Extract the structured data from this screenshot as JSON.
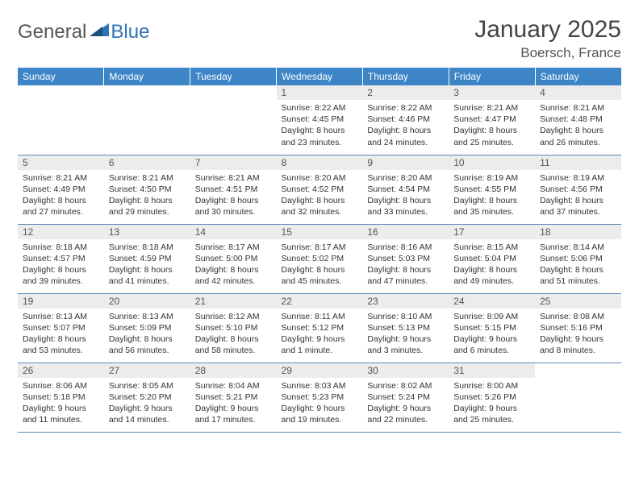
{
  "logo": {
    "text_general": "General",
    "text_blue": "Blue"
  },
  "title": "January 2025",
  "location": "Boersch, France",
  "colors": {
    "header_bg": "#3d85c6",
    "header_text": "#ffffff",
    "daynum_bg": "#ececec",
    "daynum_text": "#555555",
    "body_text": "#333333",
    "row_border": "#5c8ab8",
    "logo_blue": "#2e74b5",
    "logo_gray": "#555555"
  },
  "typography": {
    "title_fontsize": 30,
    "location_fontsize": 17,
    "header_fontsize": 12,
    "daynum_fontsize": 12,
    "cell_fontsize": 10.5
  },
  "weekdays": [
    "Sunday",
    "Monday",
    "Tuesday",
    "Wednesday",
    "Thursday",
    "Friday",
    "Saturday"
  ],
  "weeks": [
    [
      {
        "blank": true
      },
      {
        "blank": true
      },
      {
        "blank": true
      },
      {
        "day": "1",
        "sunrise": "Sunrise: 8:22 AM",
        "sunset": "Sunset: 4:45 PM",
        "daylight1": "Daylight: 8 hours",
        "daylight2": "and 23 minutes."
      },
      {
        "day": "2",
        "sunrise": "Sunrise: 8:22 AM",
        "sunset": "Sunset: 4:46 PM",
        "daylight1": "Daylight: 8 hours",
        "daylight2": "and 24 minutes."
      },
      {
        "day": "3",
        "sunrise": "Sunrise: 8:21 AM",
        "sunset": "Sunset: 4:47 PM",
        "daylight1": "Daylight: 8 hours",
        "daylight2": "and 25 minutes."
      },
      {
        "day": "4",
        "sunrise": "Sunrise: 8:21 AM",
        "sunset": "Sunset: 4:48 PM",
        "daylight1": "Daylight: 8 hours",
        "daylight2": "and 26 minutes."
      }
    ],
    [
      {
        "day": "5",
        "sunrise": "Sunrise: 8:21 AM",
        "sunset": "Sunset: 4:49 PM",
        "daylight1": "Daylight: 8 hours",
        "daylight2": "and 27 minutes."
      },
      {
        "day": "6",
        "sunrise": "Sunrise: 8:21 AM",
        "sunset": "Sunset: 4:50 PM",
        "daylight1": "Daylight: 8 hours",
        "daylight2": "and 29 minutes."
      },
      {
        "day": "7",
        "sunrise": "Sunrise: 8:21 AM",
        "sunset": "Sunset: 4:51 PM",
        "daylight1": "Daylight: 8 hours",
        "daylight2": "and 30 minutes."
      },
      {
        "day": "8",
        "sunrise": "Sunrise: 8:20 AM",
        "sunset": "Sunset: 4:52 PM",
        "daylight1": "Daylight: 8 hours",
        "daylight2": "and 32 minutes."
      },
      {
        "day": "9",
        "sunrise": "Sunrise: 8:20 AM",
        "sunset": "Sunset: 4:54 PM",
        "daylight1": "Daylight: 8 hours",
        "daylight2": "and 33 minutes."
      },
      {
        "day": "10",
        "sunrise": "Sunrise: 8:19 AM",
        "sunset": "Sunset: 4:55 PM",
        "daylight1": "Daylight: 8 hours",
        "daylight2": "and 35 minutes."
      },
      {
        "day": "11",
        "sunrise": "Sunrise: 8:19 AM",
        "sunset": "Sunset: 4:56 PM",
        "daylight1": "Daylight: 8 hours",
        "daylight2": "and 37 minutes."
      }
    ],
    [
      {
        "day": "12",
        "sunrise": "Sunrise: 8:18 AM",
        "sunset": "Sunset: 4:57 PM",
        "daylight1": "Daylight: 8 hours",
        "daylight2": "and 39 minutes."
      },
      {
        "day": "13",
        "sunrise": "Sunrise: 8:18 AM",
        "sunset": "Sunset: 4:59 PM",
        "daylight1": "Daylight: 8 hours",
        "daylight2": "and 41 minutes."
      },
      {
        "day": "14",
        "sunrise": "Sunrise: 8:17 AM",
        "sunset": "Sunset: 5:00 PM",
        "daylight1": "Daylight: 8 hours",
        "daylight2": "and 42 minutes."
      },
      {
        "day": "15",
        "sunrise": "Sunrise: 8:17 AM",
        "sunset": "Sunset: 5:02 PM",
        "daylight1": "Daylight: 8 hours",
        "daylight2": "and 45 minutes."
      },
      {
        "day": "16",
        "sunrise": "Sunrise: 8:16 AM",
        "sunset": "Sunset: 5:03 PM",
        "daylight1": "Daylight: 8 hours",
        "daylight2": "and 47 minutes."
      },
      {
        "day": "17",
        "sunrise": "Sunrise: 8:15 AM",
        "sunset": "Sunset: 5:04 PM",
        "daylight1": "Daylight: 8 hours",
        "daylight2": "and 49 minutes."
      },
      {
        "day": "18",
        "sunrise": "Sunrise: 8:14 AM",
        "sunset": "Sunset: 5:06 PM",
        "daylight1": "Daylight: 8 hours",
        "daylight2": "and 51 minutes."
      }
    ],
    [
      {
        "day": "19",
        "sunrise": "Sunrise: 8:13 AM",
        "sunset": "Sunset: 5:07 PM",
        "daylight1": "Daylight: 8 hours",
        "daylight2": "and 53 minutes."
      },
      {
        "day": "20",
        "sunrise": "Sunrise: 8:13 AM",
        "sunset": "Sunset: 5:09 PM",
        "daylight1": "Daylight: 8 hours",
        "daylight2": "and 56 minutes."
      },
      {
        "day": "21",
        "sunrise": "Sunrise: 8:12 AM",
        "sunset": "Sunset: 5:10 PM",
        "daylight1": "Daylight: 8 hours",
        "daylight2": "and 58 minutes."
      },
      {
        "day": "22",
        "sunrise": "Sunrise: 8:11 AM",
        "sunset": "Sunset: 5:12 PM",
        "daylight1": "Daylight: 9 hours",
        "daylight2": "and 1 minute."
      },
      {
        "day": "23",
        "sunrise": "Sunrise: 8:10 AM",
        "sunset": "Sunset: 5:13 PM",
        "daylight1": "Daylight: 9 hours",
        "daylight2": "and 3 minutes."
      },
      {
        "day": "24",
        "sunrise": "Sunrise: 8:09 AM",
        "sunset": "Sunset: 5:15 PM",
        "daylight1": "Daylight: 9 hours",
        "daylight2": "and 6 minutes."
      },
      {
        "day": "25",
        "sunrise": "Sunrise: 8:08 AM",
        "sunset": "Sunset: 5:16 PM",
        "daylight1": "Daylight: 9 hours",
        "daylight2": "and 8 minutes."
      }
    ],
    [
      {
        "day": "26",
        "sunrise": "Sunrise: 8:06 AM",
        "sunset": "Sunset: 5:18 PM",
        "daylight1": "Daylight: 9 hours",
        "daylight2": "and 11 minutes."
      },
      {
        "day": "27",
        "sunrise": "Sunrise: 8:05 AM",
        "sunset": "Sunset: 5:20 PM",
        "daylight1": "Daylight: 9 hours",
        "daylight2": "and 14 minutes."
      },
      {
        "day": "28",
        "sunrise": "Sunrise: 8:04 AM",
        "sunset": "Sunset: 5:21 PM",
        "daylight1": "Daylight: 9 hours",
        "daylight2": "and 17 minutes."
      },
      {
        "day": "29",
        "sunrise": "Sunrise: 8:03 AM",
        "sunset": "Sunset: 5:23 PM",
        "daylight1": "Daylight: 9 hours",
        "daylight2": "and 19 minutes."
      },
      {
        "day": "30",
        "sunrise": "Sunrise: 8:02 AM",
        "sunset": "Sunset: 5:24 PM",
        "daylight1": "Daylight: 9 hours",
        "daylight2": "and 22 minutes."
      },
      {
        "day": "31",
        "sunrise": "Sunrise: 8:00 AM",
        "sunset": "Sunset: 5:26 PM",
        "daylight1": "Daylight: 9 hours",
        "daylight2": "and 25 minutes."
      },
      {
        "blank": true
      }
    ]
  ]
}
